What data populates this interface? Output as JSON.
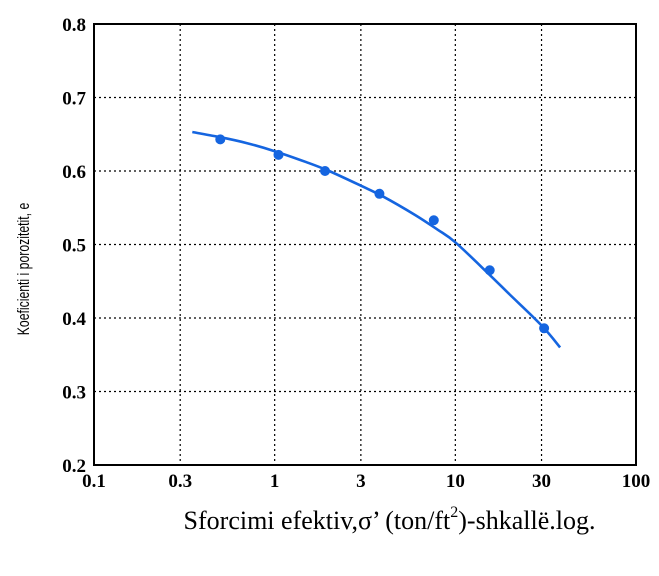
{
  "chart_data": {
    "type": "scatter",
    "title": "",
    "xlabel": {
      "prefix": "Sforcimi efektiv,σ’ (ton/ft",
      "superscript": "2",
      "suffix": ")-shkallë.log."
    },
    "ylabel": "Koeficienti i porozitetit, e",
    "xscale": "log",
    "xlim": [
      0.1,
      100
    ],
    "ylim": [
      0.2,
      0.8
    ],
    "grid": true,
    "xticks": [
      0.1,
      0.3,
      1,
      3,
      10,
      30,
      100
    ],
    "xtick_labels": [
      "0.1",
      "0.3",
      "1",
      "3",
      "10",
      "30",
      "100"
    ],
    "yticks": [
      0.2,
      0.3,
      0.4,
      0.5,
      0.6,
      0.7,
      0.8
    ],
    "ytick_labels": [
      "0.2",
      "0.3",
      "0.4",
      "0.5",
      "0.6",
      "0.7",
      "0.8"
    ],
    "series": [
      {
        "kind": "points",
        "color": "#1565e0",
        "x": [
          0.5,
          1.05,
          1.9,
          3.8,
          7.6,
          15.5,
          31
        ],
        "y": [
          0.643,
          0.622,
          0.6,
          0.569,
          0.533,
          0.465,
          0.386
        ]
      },
      {
        "kind": "fit-line",
        "color": "#1565e0",
        "x": [
          0.35,
          0.5,
          0.7,
          1,
          1.5,
          2,
          3,
          4,
          6,
          8,
          10,
          15,
          20,
          30,
          38
        ],
        "y": [
          0.653,
          0.646,
          0.638,
          0.627,
          0.612,
          0.6,
          0.58,
          0.565,
          0.54,
          0.52,
          0.503,
          0.462,
          0.432,
          0.39,
          0.36
        ]
      }
    ]
  }
}
